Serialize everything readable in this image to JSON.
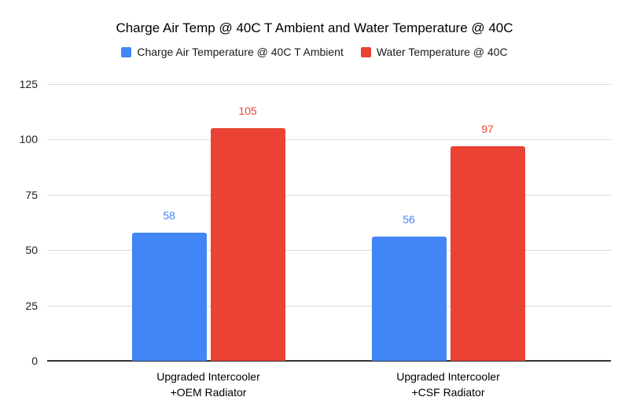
{
  "chart_data": {
    "type": "bar",
    "title": "Charge Air Temp @ 40C T Ambient and Water Temperature @ 40C",
    "categories": [
      "Upgraded Intercooler\n+OEM Radiator",
      "Upgraded Intercooler\n+CSF Radiator"
    ],
    "series": [
      {
        "name": "Charge Air Temperature @ 40C T Ambient",
        "color": "#4285F4",
        "values": [
          58,
          56
        ]
      },
      {
        "name": "Water Temperature @ 40C",
        "color": "#EA4335",
        "values": [
          105,
          97
        ]
      }
    ],
    "ylim": [
      0,
      125
    ],
    "yticks": [
      0,
      25,
      50,
      75,
      100,
      125
    ],
    "grid": true,
    "legend_position": "top",
    "data_labels": true
  },
  "colors": {
    "background": "#ffffff",
    "gridline": "#dadada",
    "axis_line": "#333333",
    "title_text": "#000000",
    "tick_text": "#222222"
  }
}
